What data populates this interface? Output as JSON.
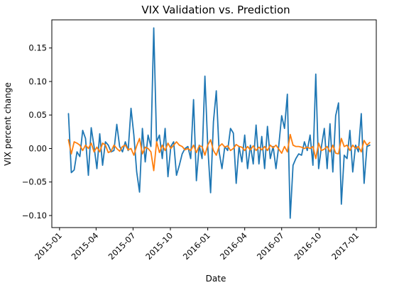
{
  "chart_data": {
    "type": "line",
    "title": "VIX Validation vs. Prediction",
    "xlabel": "Date",
    "ylabel": "VIX percent change",
    "x_ticks": [
      "2015-01",
      "2015-04",
      "2015-07",
      "2015-10",
      "2016-01",
      "2016-04",
      "2016-07",
      "2016-10",
      "2017-01"
    ],
    "y_ticks": [
      -0.1,
      -0.05,
      0.0,
      0.05,
      0.1,
      0.15
    ],
    "y_tick_labels": [
      "−0.10",
      "−0.05",
      "0.00",
      "0.05",
      "0.10",
      "0.15"
    ],
    "xlim": [
      "2014-12-13",
      "2017-02-19"
    ],
    "ylim": [
      -0.118,
      0.192
    ],
    "grid": false,
    "legend": "none",
    "colors": {
      "validation": "#1f77b4",
      "prediction": "#ff7f0e"
    },
    "series": [
      {
        "key": "validation",
        "points": [
          [
            "2015-01-23",
            0.052
          ],
          [
            "2015-01-30",
            -0.036
          ],
          [
            "2015-02-06",
            -0.032
          ],
          [
            "2015-02-13",
            -0.005
          ],
          [
            "2015-02-20",
            -0.012
          ],
          [
            "2015-02-27",
            0.027
          ],
          [
            "2015-03-06",
            0.015
          ],
          [
            "2015-03-13",
            -0.04
          ],
          [
            "2015-03-20",
            0.031
          ],
          [
            "2015-03-27",
            0.003
          ],
          [
            "2015-04-03",
            -0.03
          ],
          [
            "2015-04-10",
            0.022
          ],
          [
            "2015-04-17",
            -0.025
          ],
          [
            "2015-04-24",
            0.01
          ],
          [
            "2015-05-01",
            0.005
          ],
          [
            "2015-05-08",
            -0.005
          ],
          [
            "2015-05-15",
            -0.003
          ],
          [
            "2015-05-22",
            0.036
          ],
          [
            "2015-05-29",
            0.003
          ],
          [
            "2015-06-05",
            -0.005
          ],
          [
            "2015-06-12",
            0.01
          ],
          [
            "2015-06-19",
            -0.003
          ],
          [
            "2015-06-26",
            0.06
          ],
          [
            "2015-07-03",
            0.02
          ],
          [
            "2015-07-10",
            -0.035
          ],
          [
            "2015-07-17",
            -0.065
          ],
          [
            "2015-07-24",
            0.03
          ],
          [
            "2015-07-31",
            -0.02
          ],
          [
            "2015-08-07",
            0.02
          ],
          [
            "2015-08-14",
            0.003
          ],
          [
            "2015-08-21",
            0.18
          ],
          [
            "2015-08-28",
            0.01
          ],
          [
            "2015-09-04",
            0.02
          ],
          [
            "2015-09-11",
            -0.015
          ],
          [
            "2015-09-18",
            0.03
          ],
          [
            "2015-09-25",
            -0.042
          ],
          [
            "2015-10-02",
            0.003
          ],
          [
            "2015-10-09",
            0.01
          ],
          [
            "2015-10-16",
            -0.04
          ],
          [
            "2015-10-23",
            -0.025
          ],
          [
            "2015-10-30",
            -0.008
          ],
          [
            "2015-11-06",
            0.0
          ],
          [
            "2015-11-13",
            0.003
          ],
          [
            "2015-11-20",
            -0.015
          ],
          [
            "2015-11-27",
            0.073
          ],
          [
            "2015-12-04",
            -0.048
          ],
          [
            "2015-12-11",
            0.005
          ],
          [
            "2015-12-18",
            -0.015
          ],
          [
            "2015-12-25",
            0.108
          ],
          [
            "2016-01-01",
            0.003
          ],
          [
            "2016-01-08",
            -0.066
          ],
          [
            "2016-01-15",
            0.04
          ],
          [
            "2016-01-22",
            0.086
          ],
          [
            "2016-01-29",
            -0.005
          ],
          [
            "2016-02-05",
            -0.03
          ],
          [
            "2016-02-12",
            0.003
          ],
          [
            "2016-02-19",
            -0.003
          ],
          [
            "2016-02-26",
            0.03
          ],
          [
            "2016-03-04",
            0.023
          ],
          [
            "2016-03-11",
            -0.052
          ],
          [
            "2016-03-18",
            0.003
          ],
          [
            "2016-03-25",
            -0.02
          ],
          [
            "2016-04-01",
            0.02
          ],
          [
            "2016-04-08",
            -0.03
          ],
          [
            "2016-04-15",
            0.005
          ],
          [
            "2016-04-22",
            -0.023
          ],
          [
            "2016-04-29",
            0.035
          ],
          [
            "2016-05-06",
            -0.023
          ],
          [
            "2016-05-13",
            0.018
          ],
          [
            "2016-05-20",
            -0.03
          ],
          [
            "2016-05-27",
            0.033
          ],
          [
            "2016-06-03",
            -0.015
          ],
          [
            "2016-06-10",
            0.003
          ],
          [
            "2016-06-17",
            -0.03
          ],
          [
            "2016-06-24",
            0.005
          ],
          [
            "2016-07-01",
            0.049
          ],
          [
            "2016-07-08",
            0.03
          ],
          [
            "2016-07-15",
            0.081
          ],
          [
            "2016-07-22",
            -0.104
          ],
          [
            "2016-07-29",
            -0.025
          ],
          [
            "2016-08-05",
            -0.015
          ],
          [
            "2016-08-12",
            -0.008
          ],
          [
            "2016-08-19",
            -0.01
          ],
          [
            "2016-08-26",
            0.01
          ],
          [
            "2016-09-02",
            -0.003
          ],
          [
            "2016-09-09",
            0.02
          ],
          [
            "2016-09-16",
            -0.025
          ],
          [
            "2016-09-23",
            0.111
          ],
          [
            "2016-09-30",
            -0.03
          ],
          [
            "2016-10-07",
            0.003
          ],
          [
            "2016-10-14",
            0.03
          ],
          [
            "2016-10-21",
            -0.03
          ],
          [
            "2016-10-28",
            0.037
          ],
          [
            "2016-11-04",
            -0.035
          ],
          [
            "2016-11-11",
            0.049
          ],
          [
            "2016-11-18",
            0.068
          ],
          [
            "2016-11-25",
            -0.083
          ],
          [
            "2016-12-02",
            -0.01
          ],
          [
            "2016-12-09",
            -0.015
          ],
          [
            "2016-12-16",
            0.027
          ],
          [
            "2016-12-23",
            -0.035
          ],
          [
            "2016-12-30",
            0.005
          ],
          [
            "2017-01-06",
            -0.005
          ],
          [
            "2017-01-13",
            0.052
          ],
          [
            "2017-01-20",
            -0.052
          ],
          [
            "2017-01-27",
            0.003
          ],
          [
            "2017-02-03",
            0.005
          ]
        ]
      },
      {
        "key": "prediction",
        "points": [
          [
            "2015-01-23",
            0.013
          ],
          [
            "2015-01-30",
            -0.008
          ],
          [
            "2015-02-06",
            0.01
          ],
          [
            "2015-02-13",
            0.008
          ],
          [
            "2015-02-20",
            0.005
          ],
          [
            "2015-02-27",
            -0.003
          ],
          [
            "2015-03-06",
            0.005
          ],
          [
            "2015-03-13",
            0.0
          ],
          [
            "2015-03-20",
            0.008
          ],
          [
            "2015-03-27",
            -0.005
          ],
          [
            "2015-04-03",
            0.002
          ],
          [
            "2015-04-10",
            -0.005
          ],
          [
            "2015-04-17",
            0.008
          ],
          [
            "2015-04-24",
            0.005
          ],
          [
            "2015-05-01",
            -0.006
          ],
          [
            "2015-05-08",
            -0.004
          ],
          [
            "2015-05-15",
            0.005
          ],
          [
            "2015-05-22",
            0.0
          ],
          [
            "2015-05-29",
            -0.004
          ],
          [
            "2015-06-05",
            0.003
          ],
          [
            "2015-06-12",
            0.005
          ],
          [
            "2015-06-19",
            -0.002
          ],
          [
            "2015-06-26",
            0.0
          ],
          [
            "2015-07-03",
            -0.01
          ],
          [
            "2015-07-10",
            0.004
          ],
          [
            "2015-07-17",
            0.015
          ],
          [
            "2015-07-24",
            -0.008
          ],
          [
            "2015-07-31",
            0.002
          ],
          [
            "2015-08-07",
            0.0
          ],
          [
            "2015-08-14",
            -0.005
          ],
          [
            "2015-08-21",
            -0.033
          ],
          [
            "2015-08-28",
            0.01
          ],
          [
            "2015-09-04",
            -0.006
          ],
          [
            "2015-09-11",
            0.005
          ],
          [
            "2015-09-18",
            -0.003
          ],
          [
            "2015-09-25",
            0.008
          ],
          [
            "2015-10-02",
            0.0
          ],
          [
            "2015-10-09",
            0.005
          ],
          [
            "2015-10-16",
            0.01
          ],
          [
            "2015-10-23",
            0.005
          ],
          [
            "2015-10-30",
            0.003
          ],
          [
            "2015-11-06",
            -0.002
          ],
          [
            "2015-11-13",
            0.0
          ],
          [
            "2015-11-20",
            -0.003
          ],
          [
            "2015-11-27",
            0.005
          ],
          [
            "2015-12-04",
            -0.006
          ],
          [
            "2015-12-11",
            0.004
          ],
          [
            "2015-12-18",
            0.003
          ],
          [
            "2015-12-25",
            -0.01
          ],
          [
            "2016-01-01",
            0.005
          ],
          [
            "2016-01-08",
            0.013
          ],
          [
            "2016-01-15",
            -0.003
          ],
          [
            "2016-01-22",
            -0.01
          ],
          [
            "2016-01-29",
            0.003
          ],
          [
            "2016-02-05",
            0.007
          ],
          [
            "2016-02-12",
            0.002
          ],
          [
            "2016-02-19",
            0.004
          ],
          [
            "2016-02-26",
            -0.003
          ],
          [
            "2016-03-04",
            0.0
          ],
          [
            "2016-03-11",
            0.006
          ],
          [
            "2016-03-18",
            0.003
          ],
          [
            "2016-03-25",
            0.002
          ],
          [
            "2016-04-01",
            -0.003
          ],
          [
            "2016-04-08",
            0.003
          ],
          [
            "2016-04-15",
            -0.002
          ],
          [
            "2016-04-22",
            0.004
          ],
          [
            "2016-04-29",
            -0.003
          ],
          [
            "2016-05-06",
            0.002
          ],
          [
            "2016-05-13",
            -0.002
          ],
          [
            "2016-05-20",
            0.003
          ],
          [
            "2016-05-27",
            -0.003
          ],
          [
            "2016-06-03",
            0.005
          ],
          [
            "2016-06-10",
            0.001
          ],
          [
            "2016-06-17",
            0.005
          ],
          [
            "2016-06-24",
            -0.001
          ],
          [
            "2016-07-01",
            -0.007
          ],
          [
            "2016-07-08",
            0.003
          ],
          [
            "2016-07-15",
            -0.005
          ],
          [
            "2016-07-22",
            0.021
          ],
          [
            "2016-07-29",
            0.005
          ],
          [
            "2016-08-05",
            0.003
          ],
          [
            "2016-08-12",
            0.003
          ],
          [
            "2016-08-19",
            0.002
          ],
          [
            "2016-08-26",
            0.0
          ],
          [
            "2016-09-02",
            0.002
          ],
          [
            "2016-09-09",
            0.0
          ],
          [
            "2016-09-16",
            0.003
          ],
          [
            "2016-09-23",
            -0.015
          ],
          [
            "2016-09-30",
            0.008
          ],
          [
            "2016-10-07",
            -0.003
          ],
          [
            "2016-10-14",
            -0.001
          ],
          [
            "2016-10-21",
            0.003
          ],
          [
            "2016-10-28",
            -0.005
          ],
          [
            "2016-11-04",
            0.005
          ],
          [
            "2016-11-11",
            -0.007
          ],
          [
            "2016-11-18",
            -0.008
          ],
          [
            "2016-11-25",
            0.015
          ],
          [
            "2016-12-02",
            0.003
          ],
          [
            "2016-12-09",
            0.005
          ],
          [
            "2016-12-16",
            -0.003
          ],
          [
            "2016-12-23",
            0.005
          ],
          [
            "2016-12-30",
            0.0
          ],
          [
            "2017-01-06",
            0.003
          ],
          [
            "2017-01-13",
            -0.005
          ],
          [
            "2017-01-20",
            0.012
          ],
          [
            "2017-01-27",
            0.005
          ],
          [
            "2017-02-03",
            0.009
          ]
        ]
      }
    ]
  }
}
